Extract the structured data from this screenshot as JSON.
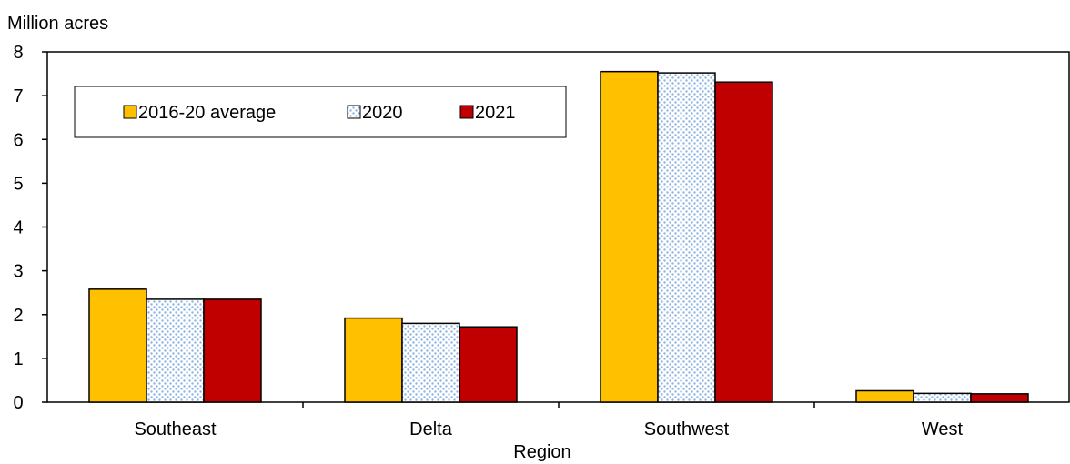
{
  "chart_data": {
    "type": "bar",
    "title": "",
    "ylabel": "Million acres",
    "xlabel": "Region",
    "ylim": [
      0,
      8
    ],
    "yticks": [
      0,
      1,
      2,
      3,
      4,
      5,
      6,
      7,
      8
    ],
    "categories": [
      "Southeast",
      "Delta",
      "Southwest",
      "West"
    ],
    "series": [
      {
        "name": "2016-20 average",
        "color": "#FFC000",
        "pattern": "solid",
        "values": [
          2.58,
          1.92,
          7.55,
          0.26
        ]
      },
      {
        "name": "2020",
        "color": "#8DB4E2",
        "pattern": "dotted",
        "values": [
          2.35,
          1.8,
          7.52,
          0.2
        ]
      },
      {
        "name": "2021",
        "color": "#C00000",
        "pattern": "solid",
        "values": [
          2.35,
          1.72,
          7.31,
          0.19
        ]
      }
    ],
    "legend_position": "top-left",
    "grid": false
  }
}
